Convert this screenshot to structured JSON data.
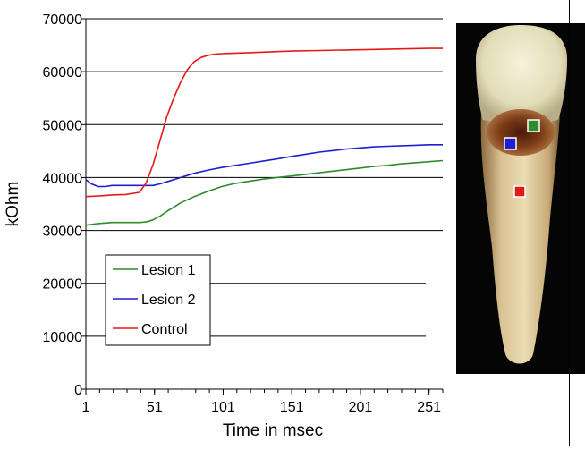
{
  "colors": {
    "lesion1": "#2e8b2e",
    "lesion2": "#1f1fd0",
    "control": "#e41a1a",
    "gridline": "#000000",
    "background": "#ffffff"
  },
  "chart_data": {
    "type": "line",
    "title": "",
    "xlabel": "Time in msec",
    "ylabel": "kOhm",
    "xlim": [
      1,
      261
    ],
    "ylim": [
      0,
      70000
    ],
    "x_ticks": [
      "1",
      "51",
      "101",
      "151",
      "201",
      "251"
    ],
    "y_ticks": [
      "0",
      "10000",
      "20000",
      "30000",
      "40000",
      "50000",
      "60000",
      "70000"
    ],
    "grid": "horizontal",
    "legend_position": "lower-left",
    "series": [
      {
        "name": "Lesion 1",
        "color": "#2e8b2e",
        "x": [
          1,
          10,
          20,
          30,
          40,
          45,
          50,
          55,
          60,
          70,
          80,
          90,
          100,
          110,
          120,
          130,
          140,
          151,
          161,
          171,
          181,
          191,
          201,
          211,
          221,
          231,
          241,
          251,
          261
        ],
        "y": [
          31000,
          31300,
          31500,
          31500,
          31500,
          31600,
          32000,
          32700,
          33600,
          35200,
          36400,
          37400,
          38300,
          38900,
          39300,
          39700,
          40000,
          40300,
          40600,
          40900,
          41200,
          41500,
          41800,
          42100,
          42300,
          42600,
          42800,
          43000,
          43200
        ]
      },
      {
        "name": "Lesion 2",
        "color": "#1f1fd0",
        "x": [
          1,
          5,
          10,
          15,
          20,
          30,
          40,
          50,
          55,
          60,
          70,
          80,
          90,
          100,
          110,
          120,
          130,
          140,
          151,
          161,
          171,
          181,
          191,
          201,
          211,
          221,
          231,
          241,
          251,
          261
        ],
        "y": [
          39600,
          38800,
          38300,
          38300,
          38500,
          38500,
          38500,
          38500,
          38800,
          39200,
          40000,
          40800,
          41400,
          41900,
          42300,
          42700,
          43100,
          43500,
          44000,
          44400,
          44800,
          45100,
          45400,
          45600,
          45800,
          45900,
          46000,
          46100,
          46200,
          46200
        ]
      },
      {
        "name": "Control",
        "color": "#e41a1a",
        "x": [
          1,
          10,
          20,
          30,
          40,
          45,
          50,
          55,
          60,
          65,
          70,
          75,
          80,
          85,
          90,
          95,
          100,
          110,
          120,
          130,
          140,
          151,
          171,
          191,
          211,
          231,
          251,
          261
        ],
        "y": [
          36400,
          36500,
          36700,
          36800,
          37200,
          39000,
          42500,
          47000,
          51500,
          55000,
          58000,
          60400,
          61900,
          62700,
          63100,
          63300,
          63400,
          63500,
          63600,
          63700,
          63800,
          63900,
          64000,
          64100,
          64200,
          64300,
          64400,
          64400
        ]
      }
    ]
  }
}
